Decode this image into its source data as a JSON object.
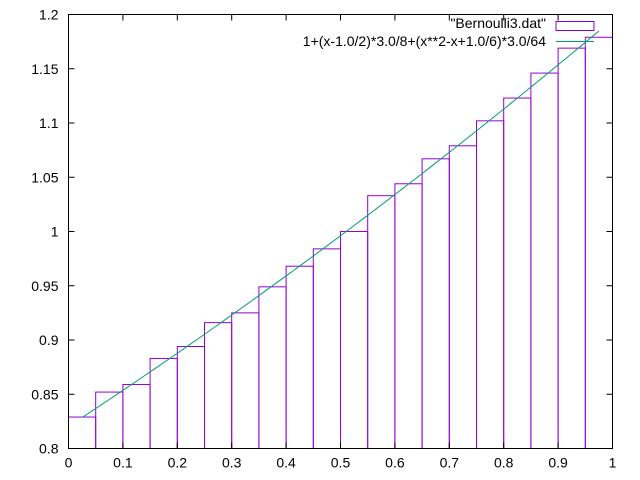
{
  "chart_data": {
    "type": "bar",
    "title": "",
    "xlabel": "",
    "ylabel": "",
    "xlim": [
      0,
      1
    ],
    "ylim": [
      0.8,
      1.2
    ],
    "xticks": [
      "0",
      "0.1",
      "0.2",
      "0.3",
      "0.4",
      "0.5",
      "0.6",
      "0.7",
      "0.8",
      "0.9",
      "1"
    ],
    "yticks": [
      "0.8",
      "0.85",
      "0.9",
      "0.95",
      "1",
      "1.05",
      "1.1",
      "1.15",
      "1.2"
    ],
    "grid": false,
    "legend_position": "top-right",
    "series": [
      {
        "name": "\"Bernoulli3.dat\"",
        "style": "boxes",
        "color": "#9400d3",
        "x": [
          0.0,
          0.05,
          0.1,
          0.15,
          0.2,
          0.25,
          0.3,
          0.35,
          0.4,
          0.45,
          0.5,
          0.55,
          0.6,
          0.65,
          0.7,
          0.75,
          0.8,
          0.85,
          0.9,
          0.95
        ],
        "values": [
          0.829,
          0.852,
          0.859,
          0.883,
          0.894,
          0.916,
          0.925,
          0.949,
          0.968,
          0.984,
          1.0,
          1.033,
          1.044,
          1.067,
          1.079,
          1.102,
          1.123,
          1.146,
          1.169,
          1.179
        ]
      },
      {
        "name": "1+(x-1.0/2)*3.0/8+(x**2-x+1.0/6)*3.0/64",
        "style": "line",
        "color": "#009e73",
        "x_range": [
          0.025,
          0.975
        ]
      }
    ]
  }
}
